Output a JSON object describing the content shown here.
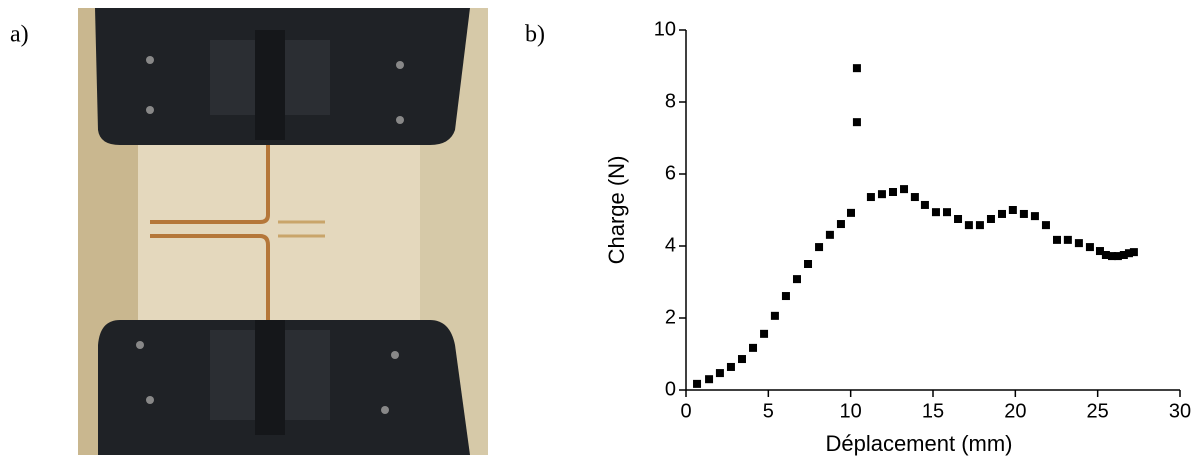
{
  "panel_labels": [
    "a)",
    "b)"
  ],
  "chart_data": {
    "type": "scatter",
    "x_label": "Déplacement (mm)",
    "y_label": "Charge (N)",
    "xlim": [
      0,
      30
    ],
    "ylim": [
      0,
      10
    ],
    "xticks": [
      0,
      5,
      10,
      15,
      20,
      25,
      30
    ],
    "yticks": [
      0,
      2,
      4,
      6,
      8,
      10
    ],
    "color": "#000000",
    "x": [
      0.67,
      1.4,
      2.06,
      2.73,
      3.4,
      4.07,
      4.74,
      5.4,
      6.07,
      6.74,
      7.41,
      8.08,
      8.74,
      9.41,
      10.02,
      10.38,
      10.38,
      11.23,
      11.9,
      12.57,
      13.24,
      13.9,
      14.51,
      15.18,
      15.85,
      16.52,
      17.18,
      17.85,
      18.52,
      19.19,
      19.85,
      20.52,
      21.19,
      21.86,
      22.53,
      23.19,
      23.86,
      24.53,
      25.14,
      25.5,
      25.87,
      26.23,
      26.59,
      26.9,
      27.2
    ],
    "values": [
      0.17,
      0.3,
      0.47,
      0.64,
      0.86,
      1.17,
      1.56,
      2.06,
      2.61,
      3.08,
      3.5,
      3.97,
      4.31,
      4.61,
      4.92,
      7.44,
      8.94,
      5.36,
      5.44,
      5.5,
      5.58,
      5.36,
      5.14,
      4.94,
      4.94,
      4.75,
      4.58,
      4.58,
      4.75,
      4.89,
      5.0,
      4.89,
      4.83,
      4.58,
      4.17,
      4.17,
      4.08,
      3.97,
      3.86,
      3.75,
      3.72,
      3.72,
      3.75,
      3.8,
      3.83
    ]
  }
}
